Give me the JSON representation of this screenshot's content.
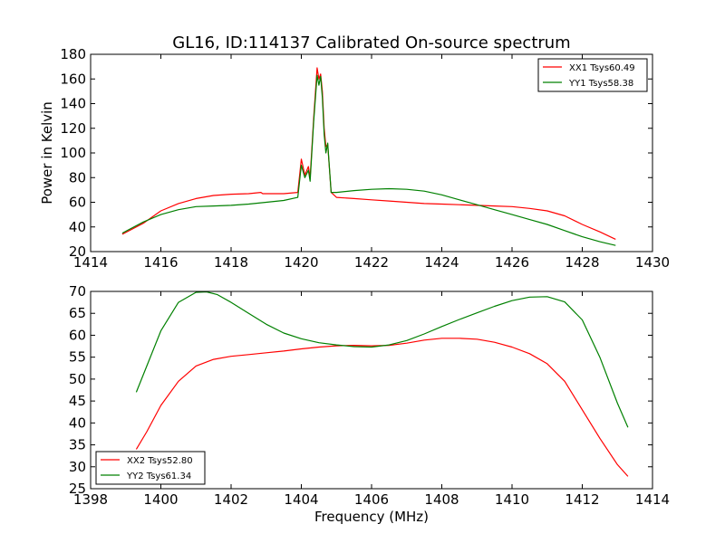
{
  "chart_data": [
    {
      "type": "line",
      "title": "GL16, ID:114137 Calibrated On-source spectrum",
      "ylabel": "Power in Kelvin",
      "xlabel": "",
      "xlim": [
        1414,
        1430
      ],
      "ylim": [
        20,
        180
      ],
      "xticks": [
        1414,
        1416,
        1418,
        1420,
        1422,
        1424,
        1426,
        1428,
        1430
      ],
      "yticks": [
        20,
        40,
        60,
        80,
        100,
        120,
        140,
        160,
        180
      ],
      "grid": false,
      "legend_position": "top-right",
      "series": [
        {
          "name": "XX1 Tsys60.49",
          "color": "#ff0000",
          "x": [
            1414.9,
            1415.5,
            1416,
            1416.5,
            1417,
            1417.5,
            1418,
            1418.5,
            1418.85,
            1418.9,
            1419,
            1419.5,
            1419.9,
            1420.0,
            1420.1,
            1420.2,
            1420.25,
            1420.35,
            1420.45,
            1420.5,
            1420.55,
            1420.6,
            1420.65,
            1420.7,
            1420.75,
            1420.85,
            1421,
            1421.5,
            1422,
            1422.5,
            1423,
            1423.5,
            1424,
            1424.5,
            1425,
            1425.5,
            1426,
            1426.5,
            1427,
            1427.5,
            1428,
            1428.5,
            1428.95
          ],
          "y": [
            34,
            43,
            53,
            59,
            63,
            65.5,
            66.5,
            67,
            68,
            67,
            67,
            67,
            68,
            95,
            82,
            89,
            80,
            128,
            169,
            160,
            164,
            150,
            120,
            105,
            107,
            68,
            64,
            63,
            62,
            61,
            60,
            59,
            58.5,
            58,
            57.5,
            57,
            56.5,
            55,
            53,
            49,
            42,
            36,
            30
          ]
        },
        {
          "name": "YY1 Tsys58.38",
          "color": "#008000",
          "x": [
            1414.9,
            1415.5,
            1416,
            1416.5,
            1417,
            1417.5,
            1418,
            1418.5,
            1419,
            1419.5,
            1419.9,
            1420.0,
            1420.1,
            1420.2,
            1420.25,
            1420.35,
            1420.45,
            1420.5,
            1420.55,
            1420.6,
            1420.65,
            1420.7,
            1420.75,
            1420.85,
            1421,
            1421.5,
            1422,
            1422.5,
            1423,
            1423.5,
            1424,
            1424.5,
            1425,
            1425.5,
            1426,
            1426.5,
            1427,
            1427.5,
            1428,
            1428.5,
            1428.95
          ],
          "y": [
            35,
            44,
            50,
            54,
            56.5,
            57,
            57.5,
            58.5,
            60,
            61.5,
            64,
            90,
            80,
            86,
            77,
            125,
            163,
            155,
            162,
            145,
            115,
            100,
            108,
            68,
            68,
            69.5,
            70.5,
            71,
            70.5,
            69,
            66,
            62,
            58,
            54,
            50,
            46,
            42,
            37,
            32,
            28,
            25
          ]
        }
      ]
    },
    {
      "type": "line",
      "title": "",
      "xlabel": "Frequency (MHz)",
      "ylabel": "",
      "xlim": [
        1398,
        1414
      ],
      "ylim": [
        25,
        70
      ],
      "xticks": [
        1398,
        1400,
        1402,
        1404,
        1406,
        1408,
        1410,
        1412,
        1414
      ],
      "yticks": [
        25,
        30,
        35,
        40,
        45,
        50,
        55,
        60,
        65,
        70
      ],
      "grid": false,
      "legend_position": "bottom-left",
      "series": [
        {
          "name": "XX2 Tsys52.80",
          "color": "#ff0000",
          "x": [
            1399.3,
            1399.6,
            1400,
            1400.5,
            1401,
            1401.5,
            1402,
            1402.5,
            1403,
            1403.5,
            1404,
            1404.5,
            1405,
            1405.5,
            1406,
            1406.5,
            1407,
            1407.5,
            1408,
            1408.5,
            1409,
            1409.5,
            1410,
            1410.5,
            1411,
            1411.5,
            1412,
            1412.5,
            1413,
            1413.3
          ],
          "y": [
            34,
            38,
            44,
            49.5,
            53,
            54.5,
            55.2,
            55.6,
            56,
            56.4,
            56.9,
            57.3,
            57.6,
            57.7,
            57.6,
            57.7,
            58.2,
            58.9,
            59.3,
            59.3,
            59.1,
            58.4,
            57.3,
            55.8,
            53.5,
            49.5,
            43,
            36.5,
            30.5,
            27.8
          ]
        },
        {
          "name": "YY2 Tsys61.34",
          "color": "#008000",
          "x": [
            1399.3,
            1399.6,
            1400,
            1400.5,
            1401,
            1401.3,
            1401.6,
            1402,
            1402.5,
            1403,
            1403.5,
            1404,
            1404.5,
            1405,
            1405.5,
            1406,
            1406.5,
            1407,
            1407.5,
            1408,
            1408.5,
            1409,
            1409.5,
            1410,
            1410.5,
            1411,
            1411.5,
            1412,
            1412.5,
            1413,
            1413.3
          ],
          "y": [
            47,
            53,
            61,
            67.5,
            69.8,
            69.9,
            69.3,
            67.5,
            65,
            62.5,
            60.5,
            59.2,
            58.3,
            57.8,
            57.4,
            57.3,
            57.8,
            58.8,
            60.3,
            62,
            63.6,
            65.1,
            66.6,
            67.9,
            68.7,
            68.8,
            67.6,
            63.5,
            55,
            44.5,
            39
          ]
        }
      ]
    }
  ]
}
